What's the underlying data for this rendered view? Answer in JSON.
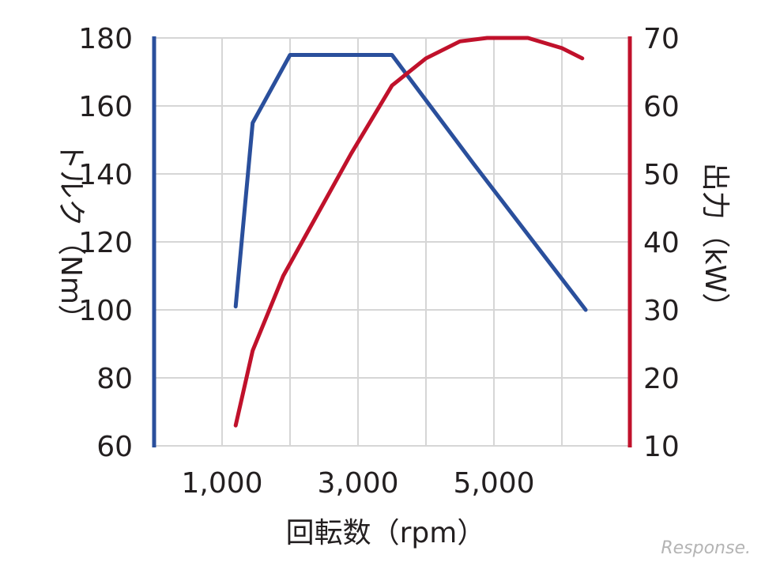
{
  "chart_data": {
    "type": "line",
    "xlabel": "回転数（rpm）",
    "xlim": [
      0,
      7000
    ],
    "x_ticks": [
      1000,
      3000,
      5000
    ],
    "x_tick_labels": [
      "1,000",
      "3,000",
      "5,000"
    ],
    "y_left": {
      "label": "トルク（Nm）",
      "lim": [
        60,
        180
      ],
      "ticks": [
        "60",
        "80",
        "100",
        "120",
        "140",
        "160",
        "180"
      ],
      "color": "#2a4f9c"
    },
    "y_right": {
      "label": "出力（kW）",
      "lim": [
        10,
        70
      ],
      "ticks": [
        "10",
        "20",
        "30",
        "40",
        "50",
        "60",
        "70"
      ],
      "color": "#c0112b"
    },
    "grid": true,
    "series": [
      {
        "name": "トルク（Nm）",
        "axis": "left",
        "color": "#2a4f9c",
        "x": [
          1200,
          1450,
          2000,
          3500,
          4700,
          6350
        ],
        "y": [
          101,
          155,
          175,
          175,
          143,
          100
        ]
      },
      {
        "name": "出力（kW）",
        "axis": "right",
        "color": "#c0112b",
        "x": [
          1200,
          1450,
          1900,
          2400,
          2900,
          3500,
          4000,
          4500,
          4900,
          5500,
          6000,
          6300
        ],
        "y": [
          13,
          24,
          35,
          44,
          53,
          63,
          67,
          69.5,
          70,
          70,
          68.5,
          67
        ]
      }
    ]
  },
  "watermark": "Response."
}
